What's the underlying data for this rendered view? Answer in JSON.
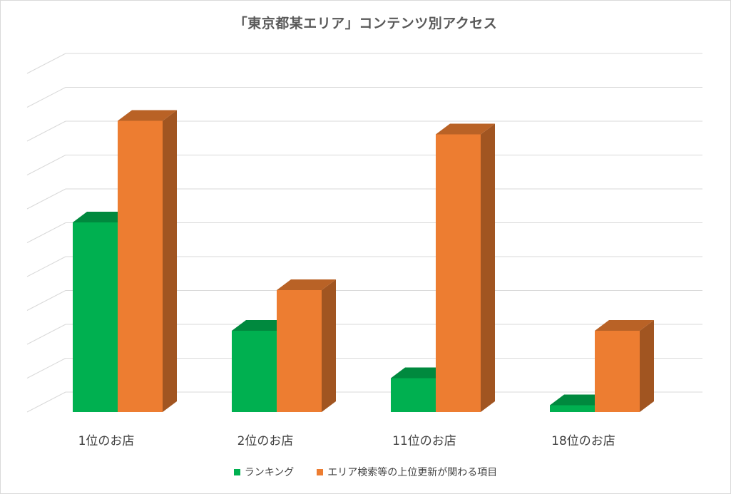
{
  "chart_data": {
    "type": "bar",
    "title": "「東京都某エリア」コンテンツ別アクセス",
    "categories": [
      "1位のお店",
      "2位のお店",
      "11位のお店",
      "18位のお店"
    ],
    "series": [
      {
        "name": "ランキング",
        "color": "#00b050",
        "values": [
          5.6,
          2.4,
          1.0,
          0.2
        ]
      },
      {
        "name": "エリア検索等の上位更新が関わる項目",
        "color": "#ed7d31",
        "values": [
          8.6,
          3.6,
          8.2,
          2.4
        ]
      }
    ],
    "ylim": [
      0,
      10
    ],
    "grid": true,
    "legend_position": "bottom"
  }
}
